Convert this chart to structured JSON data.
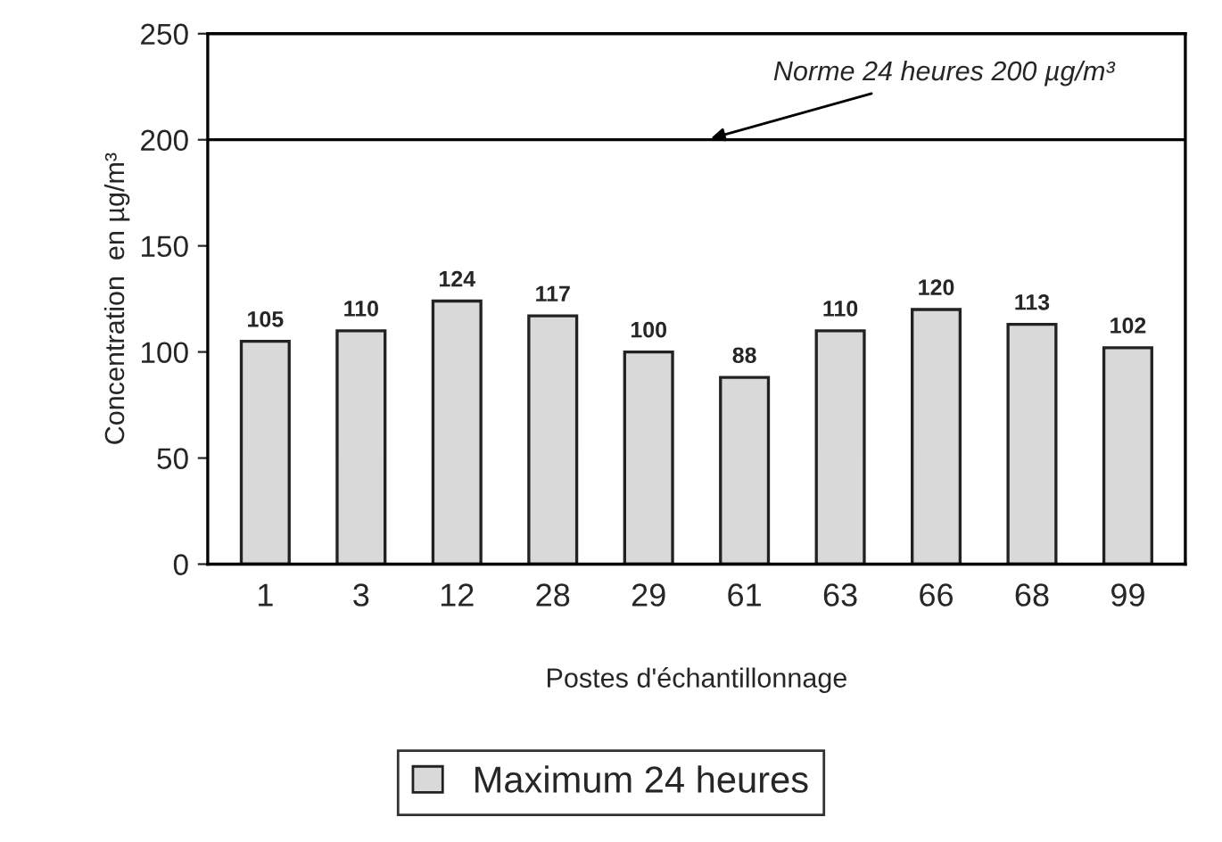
{
  "chart_data": {
    "type": "bar",
    "xlabel": "Postes d'échantillonnage",
    "ylabel": "Concentration  en µg/m³",
    "categories": [
      "1",
      "3",
      "12",
      "28",
      "29",
      "61",
      "63",
      "66",
      "68",
      "99"
    ],
    "series": [
      {
        "name": "Maximum 24 heures",
        "color": "#d9d9d9",
        "values": [
          105,
          110,
          124,
          117,
          100,
          88,
          110,
          120,
          113,
          102
        ]
      }
    ],
    "data_labels": true,
    "ylim": [
      0,
      250
    ],
    "yticks": [
      0,
      50,
      100,
      150,
      200,
      250
    ],
    "ref_lines": [
      {
        "axis": "y",
        "value": 200,
        "label": "Norme 24 heures 200 µg/m³",
        "color": "#000000"
      }
    ],
    "grid": false,
    "legend": "bottom"
  }
}
